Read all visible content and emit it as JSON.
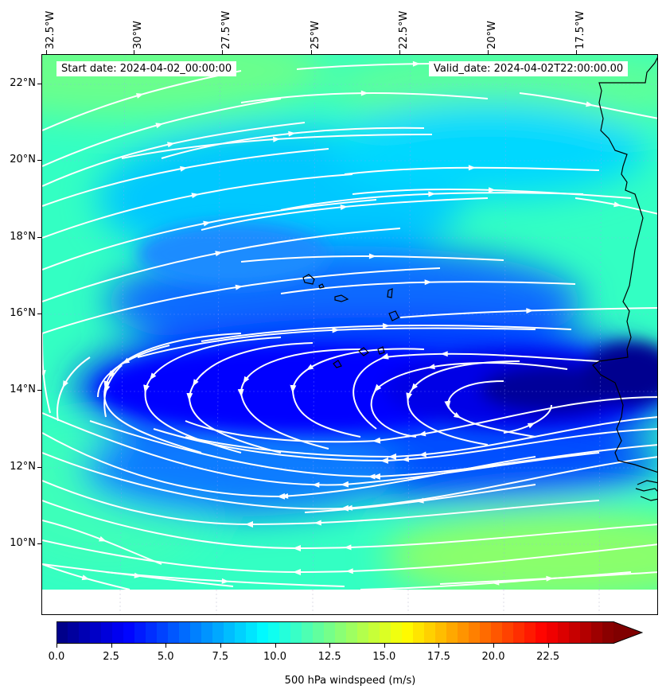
{
  "header": {
    "start_date": "Start date: 2024-04-02_00:00:00",
    "valid_date": "Valid_date: 2024-04-02T22:00:00.00"
  },
  "axes": {
    "lon_labels": [
      "32.5°W",
      "30°W",
      "27.5°W",
      "25°W",
      "22.5°W",
      "20°W",
      "17.5°W"
    ],
    "lat_labels": [
      "22°N",
      "20°N",
      "18°N",
      "16°N",
      "14°N",
      "12°N",
      "10°N"
    ]
  },
  "colorbar": {
    "title": "500 hPa windspeed (m/s)",
    "tick_labels": [
      "0.0",
      "2.5",
      "5.0",
      "7.5",
      "10.0",
      "12.5",
      "15.0",
      "17.5",
      "20.0",
      "22.5"
    ],
    "vmin": 0,
    "vmax": 25.5,
    "extend": "max",
    "colormap": "jet"
  },
  "map": {
    "background_note": "filled contours of wind speed with white streamlines",
    "coastline_color": "#000000",
    "streamline_color": "#ffffff"
  }
}
